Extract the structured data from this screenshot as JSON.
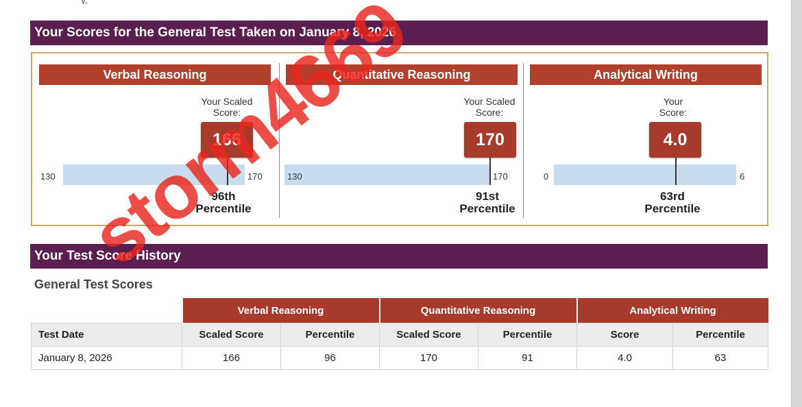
{
  "header_partial_text": "y,",
  "scores_heading": "Your Scores for the General Test Taken on January 8, 2026",
  "panels": [
    {
      "title": "Verbal Reasoning",
      "score_label": "Your Scaled\nScore:",
      "score": "166",
      "min": "130",
      "max": "170",
      "percentile_num": "96th",
      "percentile_word": "Percentile",
      "score_fraction": 0.9
    },
    {
      "title": "Quantitative Reasoning",
      "score_label": "Your Scaled\nScore:",
      "score": "170",
      "min": "130",
      "max": "170",
      "percentile_num": "91st",
      "percentile_word": "Percentile",
      "score_fraction": 1.0
    },
    {
      "title": "Analytical Writing",
      "score_label": "Your\nScore:",
      "score": "4.0",
      "min": "0",
      "max": "6",
      "percentile_num": "63rd",
      "percentile_word": "Percentile",
      "score_fraction": 0.667
    }
  ],
  "history_heading": "Your Test Score History",
  "history_subheading": "General Test Scores",
  "history_table": {
    "groups": [
      "Verbal Reasoning",
      "Quantitative Reasoning",
      "Analytical Writing"
    ],
    "columns": [
      "Test Date",
      "Scaled Score",
      "Percentile",
      "Scaled Score",
      "Percentile",
      "Score",
      "Percentile"
    ],
    "rows": [
      [
        "January 8, 2026",
        "166",
        "96",
        "170",
        "91",
        "4.0",
        "63"
      ]
    ]
  },
  "watermark": "storm4669",
  "colors": {
    "heading_bar": "#5a1f4f",
    "panel_title": "#b0402c",
    "score_box": "#a83a2c",
    "track": "#c7dcef",
    "box_border": "#c9a86a",
    "watermark": "#e8261e"
  }
}
